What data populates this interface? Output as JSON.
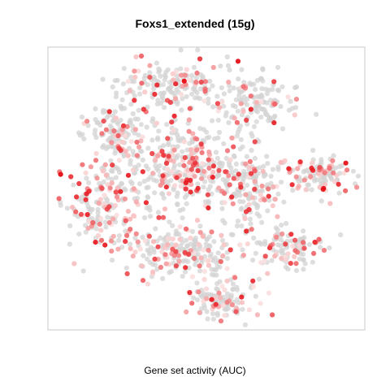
{
  "chart_data": {
    "type": "scatter",
    "title": "Foxs1_extended (15g)",
    "xlabel": "Gene set activity (AUC)",
    "ylabel": "",
    "xlim": [
      0,
      1
    ],
    "ylim": [
      0,
      1
    ],
    "grid": false,
    "legend": "none",
    "colors": {
      "background_points": "#d3d3d3",
      "low_activity": "#fbe0e0",
      "high_activity": "#e8141b",
      "frame": "#c8c8c8"
    },
    "clusters": [
      {
        "name": "top",
        "cx": 0.39,
        "cy": 0.86,
        "rx": 0.15,
        "ry": 0.08,
        "n": 160,
        "active_frac": 0.28
      },
      {
        "name": "upper-right",
        "cx": 0.65,
        "cy": 0.8,
        "rx": 0.12,
        "ry": 0.09,
        "n": 140,
        "active_frac": 0.18
      },
      {
        "name": "upper-left",
        "cx": 0.22,
        "cy": 0.7,
        "rx": 0.09,
        "ry": 0.08,
        "n": 110,
        "active_frac": 0.22
      },
      {
        "name": "center",
        "cx": 0.43,
        "cy": 0.58,
        "rx": 0.19,
        "ry": 0.16,
        "n": 360,
        "active_frac": 0.35
      },
      {
        "name": "left",
        "cx": 0.17,
        "cy": 0.44,
        "rx": 0.1,
        "ry": 0.14,
        "n": 180,
        "active_frac": 0.4
      },
      {
        "name": "center-right",
        "cx": 0.64,
        "cy": 0.5,
        "rx": 0.09,
        "ry": 0.12,
        "n": 150,
        "active_frac": 0.25
      },
      {
        "name": "lower-center",
        "cx": 0.42,
        "cy": 0.28,
        "rx": 0.16,
        "ry": 0.09,
        "n": 220,
        "active_frac": 0.3
      },
      {
        "name": "right-island",
        "cx": 0.86,
        "cy": 0.55,
        "rx": 0.09,
        "ry": 0.06,
        "n": 110,
        "active_frac": 0.35
      },
      {
        "name": "lower-right",
        "cx": 0.76,
        "cy": 0.29,
        "rx": 0.09,
        "ry": 0.07,
        "n": 110,
        "active_frac": 0.3
      },
      {
        "name": "bottom",
        "cx": 0.55,
        "cy": 0.11,
        "rx": 0.09,
        "ry": 0.06,
        "n": 120,
        "active_frac": 0.32
      }
    ],
    "highlight_points": [
      {
        "x": 0.04,
        "y": 0.55,
        "v": 1.0
      },
      {
        "x": 0.6,
        "y": 0.95,
        "v": 0.95
      },
      {
        "x": 0.43,
        "y": 0.88,
        "v": 1.0
      },
      {
        "x": 0.87,
        "y": 0.5,
        "v": 1.0
      },
      {
        "x": 0.94,
        "y": 0.59,
        "v": 0.95
      },
      {
        "x": 0.52,
        "y": 0.54,
        "v": 0.9
      },
      {
        "x": 0.58,
        "y": 0.47,
        "v": 0.85
      },
      {
        "x": 0.15,
        "y": 0.31,
        "v": 0.9
      },
      {
        "x": 0.18,
        "y": 0.3,
        "v": 0.9
      },
      {
        "x": 0.31,
        "y": 0.45,
        "v": 0.85
      },
      {
        "x": 0.76,
        "y": 0.57,
        "v": 0.9
      },
      {
        "x": 0.7,
        "y": 0.29,
        "v": 0.8
      },
      {
        "x": 0.53,
        "y": 0.09,
        "v": 0.85
      },
      {
        "x": 0.09,
        "y": 0.47,
        "v": 0.8
      }
    ]
  }
}
